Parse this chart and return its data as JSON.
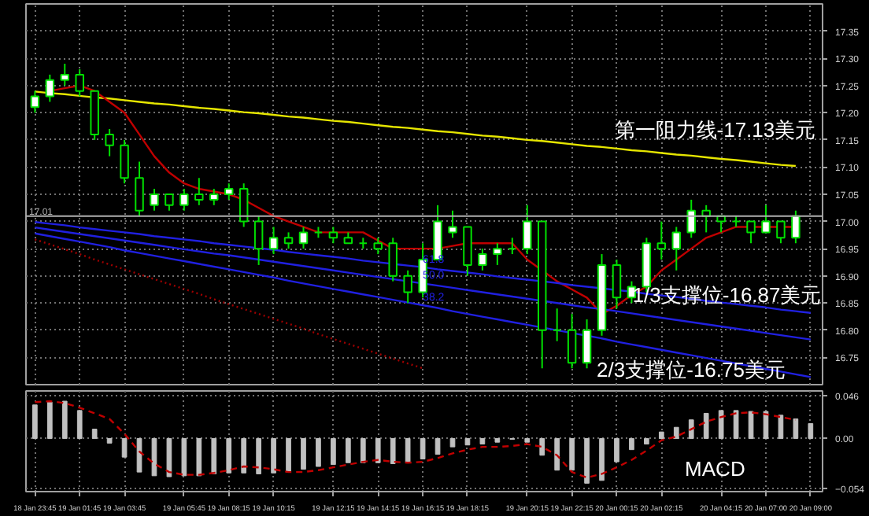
{
  "chart_data": [
    {
      "type": "candlestick",
      "color": "#00e000",
      "categories": [
        "18 Jan 23:45",
        null,
        null,
        "19 Jan 01:45",
        null,
        null,
        "19 Jan 03:45",
        null,
        null,
        null,
        "19 Jan 05:45",
        null,
        null,
        "19 Jan 08:15",
        null,
        null,
        "19 Jan 10:15",
        null,
        null,
        null,
        "19 Jan 12:15",
        null,
        null,
        "19 Jan 14:15",
        null,
        null,
        "19 Jan 16:15",
        null,
        null,
        "19 Jan 18:15",
        null,
        null,
        null,
        "19 Jan 20:15",
        null,
        null,
        "19 Jan 22:15",
        null,
        null,
        "20 Jan 00:15",
        null,
        null,
        "20 Jan 02:15",
        null,
        null,
        null,
        "20 Jan 04:15",
        null,
        null,
        "20 Jan 07:00",
        null,
        null,
        "20 Jan 09:00"
      ],
      "ohlc": [
        [
          17.21,
          17.24,
          17.2,
          17.23
        ],
        [
          17.23,
          17.27,
          17.22,
          17.26
        ],
        [
          17.26,
          17.29,
          17.25,
          17.27
        ],
        [
          17.27,
          17.28,
          17.23,
          17.24
        ],
        [
          17.24,
          17.24,
          17.15,
          17.16
        ],
        [
          17.16,
          17.17,
          17.12,
          17.14
        ],
        [
          17.14,
          17.15,
          17.07,
          17.08
        ],
        [
          17.08,
          17.11,
          17.01,
          17.02
        ],
        [
          17.03,
          17.06,
          17.02,
          17.05
        ],
        [
          17.05,
          17.05,
          17.02,
          17.03
        ],
        [
          17.03,
          17.06,
          17.02,
          17.05
        ],
        [
          17.05,
          17.08,
          17.03,
          17.04
        ],
        [
          17.04,
          17.06,
          17.03,
          17.05
        ],
        [
          17.05,
          17.07,
          17.04,
          17.06
        ],
        [
          17.06,
          17.07,
          16.99,
          17.0
        ],
        [
          17.0,
          17.01,
          16.92,
          16.95
        ],
        [
          16.95,
          16.99,
          16.94,
          16.97
        ],
        [
          16.97,
          16.98,
          16.95,
          16.96
        ],
        [
          16.96,
          16.99,
          16.95,
          16.98
        ],
        [
          16.98,
          16.99,
          16.97,
          16.98
        ],
        [
          16.98,
          16.99,
          16.96,
          16.97
        ],
        [
          16.97,
          16.98,
          16.96,
          16.96
        ],
        [
          16.96,
          16.97,
          16.95,
          16.96
        ],
        [
          16.96,
          16.97,
          16.94,
          16.95
        ],
        [
          16.96,
          16.97,
          16.89,
          16.9
        ],
        [
          16.9,
          16.91,
          16.85,
          16.87
        ],
        [
          16.87,
          16.96,
          16.86,
          16.93
        ],
        [
          16.93,
          17.03,
          16.93,
          17.0
        ],
        [
          16.98,
          17.02,
          16.97,
          16.99
        ],
        [
          16.99,
          16.99,
          16.9,
          16.92
        ],
        [
          16.92,
          16.95,
          16.91,
          16.94
        ],
        [
          16.94,
          16.96,
          16.92,
          16.95
        ],
        [
          16.95,
          16.97,
          16.94,
          16.95
        ],
        [
          16.95,
          17.03,
          16.94,
          17.0
        ],
        [
          17.0,
          17.0,
          16.73,
          16.8
        ],
        [
          16.8,
          16.84,
          16.78,
          16.8
        ],
        [
          16.8,
          16.83,
          16.73,
          16.74
        ],
        [
          16.74,
          16.82,
          16.73,
          16.8
        ],
        [
          16.8,
          16.94,
          16.79,
          16.92
        ],
        [
          16.92,
          16.93,
          16.84,
          16.86
        ],
        [
          16.86,
          16.89,
          16.85,
          16.88
        ],
        [
          16.88,
          16.97,
          16.87,
          16.96
        ],
        [
          16.96,
          17.0,
          16.93,
          16.95
        ],
        [
          16.95,
          16.99,
          16.91,
          16.98
        ],
        [
          16.98,
          17.04,
          16.97,
          17.02
        ],
        [
          17.02,
          17.03,
          16.98,
          17.01
        ],
        [
          17.01,
          17.01,
          16.98,
          17.0
        ],
        [
          17.0,
          17.01,
          16.99,
          17.0
        ],
        [
          17.0,
          17.0,
          16.96,
          16.98
        ],
        [
          16.98,
          17.03,
          16.98,
          17.0
        ],
        [
          17.0,
          17.0,
          16.96,
          16.97
        ],
        [
          16.97,
          17.02,
          16.96,
          17.01
        ],
        null
      ],
      "ylim": [
        16.7,
        17.4
      ],
      "yticks": [
        17.35,
        {
          "value": 17.3,
          "label": "17.30"
        },
        17.25,
        {
          "value": 17.2,
          "label": "17.20"
        },
        17.15,
        {
          "value": 17.1,
          "label": "17.10"
        },
        17.05,
        {
          "value": 17.0,
          "label": "17.00"
        },
        16.95,
        {
          "value": 16.9,
          "label": "16.90"
        },
        16.85,
        {
          "value": 16.8,
          "label": "16.80"
        },
        16.75
      ],
      "tick_labels": "y",
      "grid": true,
      "series": [
        {
          "type": "line",
          "color": "#e6e600",
          "values": [
            17.239,
            17.236,
            17.234,
            17.231,
            17.228,
            17.226,
            17.223,
            17.22,
            17.217,
            17.215,
            17.212,
            17.209,
            17.207,
            17.204,
            17.201,
            17.199,
            17.196,
            17.193,
            17.191,
            17.188,
            17.185,
            17.183,
            17.18,
            17.177,
            17.174,
            17.172,
            17.169,
            17.166,
            17.164,
            17.161,
            17.158,
            17.156,
            17.153,
            17.15,
            17.148,
            17.145,
            17.142,
            17.139,
            17.137,
            17.134,
            17.131,
            17.129,
            17.126,
            17.123,
            17.121,
            17.118,
            17.115,
            17.113,
            17.11,
            17.107,
            17.104,
            17.102,
            null
          ]
        },
        {
          "type": "line",
          "color": "#c00000",
          "values": [
            null,
            17.24,
            17.245,
            17.25,
            17.24,
            17.22,
            17.2,
            17.16,
            17.12,
            17.09,
            17.07,
            17.06,
            17.055,
            17.05,
            17.04,
            17.025,
            17.01,
            17.0,
            16.99,
            16.98,
            16.98,
            16.98,
            16.98,
            16.965,
            16.95,
            16.95,
            16.95,
            16.95,
            16.955,
            16.96,
            16.96,
            16.96,
            16.96,
            16.93,
            16.91,
            16.89,
            16.875,
            16.86,
            16.83,
            16.845,
            16.865,
            16.88,
            16.91,
            16.93,
            16.95,
            16.97,
            16.98,
            16.99,
            16.99,
            16.99,
            16.99,
            16.99,
            null
          ]
        },
        {
          "type": "line",
          "name": "61.8",
          "color": "#2020e0",
          "values": [
            16.999,
            16.996,
            16.993,
            16.989,
            16.986,
            16.983,
            16.98,
            16.977,
            16.973,
            16.97,
            16.967,
            16.964,
            16.96,
            16.957,
            16.954,
            16.951,
            16.948,
            16.944,
            16.941,
            16.938,
            16.935,
            16.932,
            16.928,
            16.925,
            16.922,
            16.919,
            16.916,
            16.912,
            16.909,
            16.906,
            16.903,
            16.899,
            16.896,
            16.893,
            16.89,
            16.887,
            16.883,
            16.88,
            16.877,
            16.874,
            16.871,
            16.867,
            16.864,
            16.861,
            16.858,
            16.854,
            16.851,
            16.848,
            16.845,
            16.842,
            16.838,
            16.835,
            16.832
          ]
        },
        {
          "type": "line",
          "name": "50.0",
          "color": "#2020e0",
          "values": [
            16.989,
            16.985,
            16.981,
            16.977,
            16.973,
            16.969,
            16.965,
            16.961,
            16.957,
            16.953,
            16.949,
            16.945,
            16.941,
            16.938,
            16.934,
            16.93,
            16.926,
            16.922,
            16.918,
            16.914,
            16.91,
            16.906,
            16.902,
            16.898,
            16.894,
            16.89,
            16.886,
            16.882,
            16.878,
            16.874,
            16.87,
            16.866,
            16.862,
            16.858,
            16.854,
            16.85,
            16.846,
            16.842,
            16.839,
            16.835,
            16.831,
            16.827,
            16.823,
            16.819,
            16.815,
            16.811,
            16.807,
            16.803,
            16.799,
            16.795,
            16.791,
            16.787,
            16.783
          ]
        },
        {
          "type": "line",
          "name": "38.2",
          "color": "#2020e0",
          "values": [
            16.978,
            16.973,
            16.968,
            16.963,
            16.958,
            16.953,
            16.947,
            16.942,
            16.937,
            16.932,
            16.927,
            16.922,
            16.917,
            16.912,
            16.907,
            16.902,
            16.897,
            16.891,
            16.886,
            16.881,
            16.876,
            16.871,
            16.866,
            16.861,
            16.856,
            16.851,
            16.846,
            16.841,
            16.835,
            16.83,
            16.825,
            16.82,
            16.815,
            16.81,
            16.805,
            16.8,
            16.795,
            16.79,
            16.785,
            16.779,
            16.774,
            16.769,
            16.764,
            16.759,
            16.754,
            16.749,
            16.744,
            16.739,
            16.734,
            16.729,
            16.724,
            16.719,
            16.714
          ]
        },
        {
          "type": "line",
          "color": "#a00000",
          "line_style": "dotted",
          "values": [
            16.967,
            16.958,
            16.949,
            16.94,
            16.93,
            16.921,
            16.912,
            16.903,
            16.894,
            16.885,
            16.876,
            16.867,
            16.857,
            16.848,
            16.839,
            16.83,
            16.821,
            16.812,
            16.803,
            16.793,
            16.784,
            16.775,
            16.766,
            16.757,
            16.748,
            16.739,
            16.73,
            null,
            null,
            null,
            null,
            null,
            null,
            null,
            null,
            null,
            null,
            null,
            null,
            null,
            null,
            null,
            null,
            null,
            null,
            null,
            null,
            null,
            null,
            null,
            null,
            null,
            null
          ]
        }
      ],
      "ref_lines": [
        {
          "axis": "y",
          "value": 17.01,
          "label": "17.01",
          "color": "#b0b0b0"
        }
      ],
      "annotations": [
        "第一阻力线-17.13美元",
        "1/3支撑位-16.87美元",
        "2/3支撑位-16.75美元"
      ]
    },
    {
      "type": "bar",
      "categories": [
        "18 Jan 23:45",
        null,
        null,
        "19 Jan 01:45",
        null,
        null,
        "19 Jan 03:45",
        null,
        null,
        null,
        "19 Jan 05:45",
        null,
        null,
        "19 Jan 08:15",
        null,
        null,
        "19 Jan 10:15",
        null,
        null,
        null,
        "19 Jan 12:15",
        null,
        null,
        "19 Jan 14:15",
        null,
        null,
        "19 Jan 16:15",
        null,
        null,
        "19 Jan 18:15",
        null,
        null,
        null,
        "19 Jan 20:15",
        null,
        null,
        "19 Jan 22:15",
        null,
        null,
        "20 Jan 00:15",
        null,
        null,
        "20 Jan 02:15",
        null,
        null,
        null,
        "20 Jan 04:15",
        null,
        null,
        "20 Jan 07:00",
        null,
        null,
        "20 Jan 09:00"
      ],
      "ylim": [
        -0.057,
        0.051
      ],
      "yticks": [
        0.046,
        {
          "value": 0,
          "label": "0.00"
        },
        -0.054
      ],
      "grid": true,
      "series": [
        {
          "color": "#c0c0c0",
          "values": [
            0.036,
            0.039,
            0.04,
            0.03,
            0.01,
            -0.005,
            -0.02,
            -0.036,
            -0.04,
            -0.041,
            -0.04,
            -0.04,
            -0.038,
            -0.037,
            -0.037,
            -0.038,
            -0.037,
            -0.036,
            -0.033,
            -0.03,
            -0.028,
            -0.026,
            -0.026,
            -0.026,
            -0.027,
            -0.026,
            -0.022,
            -0.017,
            -0.009,
            -0.007,
            -0.006,
            -0.004,
            -0.001,
            -0.004,
            -0.018,
            -0.034,
            -0.034,
            -0.048,
            -0.045,
            -0.025,
            -0.012,
            -0.006,
            0.007,
            0.012,
            0.02,
            0.027,
            0.03,
            0.03,
            0.029,
            0.029,
            0.025,
            0.021,
            0.016
          ]
        },
        {
          "type": "line",
          "color": "#c00000",
          "line_style": "dashed",
          "values": [
            0.039,
            0.04,
            0.038,
            0.033,
            0.027,
            0.021,
            0.005,
            -0.014,
            -0.027,
            -0.036,
            -0.039,
            -0.039,
            -0.037,
            -0.034,
            -0.03,
            -0.031,
            -0.033,
            -0.036,
            -0.036,
            -0.034,
            -0.031,
            -0.028,
            -0.025,
            -0.023,
            -0.025,
            -0.026,
            -0.025,
            -0.021,
            -0.016,
            -0.012,
            -0.009,
            -0.009,
            -0.008,
            -0.006,
            -0.009,
            -0.018,
            -0.036,
            -0.042,
            -0.038,
            -0.031,
            -0.023,
            -0.013,
            -0.002,
            0.002,
            0.01,
            0.018,
            0.023,
            0.027,
            0.028,
            0.026,
            0.023,
            0.02,
            null
          ]
        }
      ],
      "annotations": [
        "MACD"
      ]
    }
  ]
}
